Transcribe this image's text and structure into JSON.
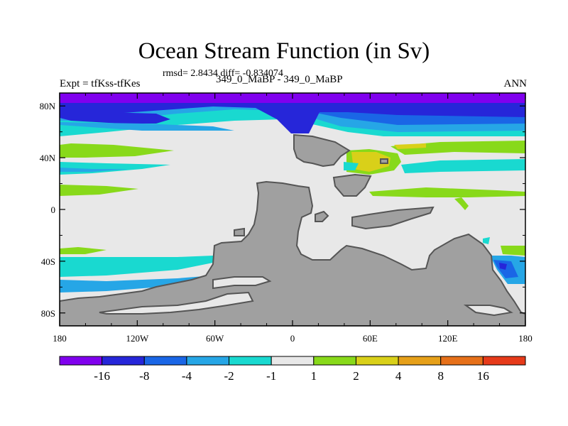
{
  "title": "Ocean Stream Function (in Sv)",
  "stats": "rmsd= 2.8434  diff= -0.834074",
  "left_label": "Expt = tfKss-tfKes",
  "center_label": "349_0_MaBP - 349_0_MaBP",
  "right_label": "ANN",
  "chart_data": {
    "type": "heatmap",
    "x_ticks": [
      "180",
      "120W",
      "60W",
      "0",
      "60E",
      "120E",
      "180"
    ],
    "y_ticks": [
      "80N",
      "40N",
      "0",
      "40S",
      "80S"
    ],
    "xlim": [
      -180,
      180
    ],
    "ylim": [
      -90,
      90
    ],
    "colorbar": {
      "labels": [
        "-16",
        "-8",
        "-4",
        "-2",
        "-1",
        "1",
        "2",
        "4",
        "8",
        "16"
      ],
      "colors": [
        "#8000ee",
        "#2626d9",
        "#1a66e6",
        "#26a6e6",
        "#19d9d0",
        "#e8e8e8",
        "#88d91a",
        "#d9d019",
        "#e6a019",
        "#e67019",
        "#e63a1a"
      ]
    },
    "colors": {
      "land": "#a0a0a0",
      "coast": "#555555",
      "background": "#e8e8e8"
    }
  }
}
